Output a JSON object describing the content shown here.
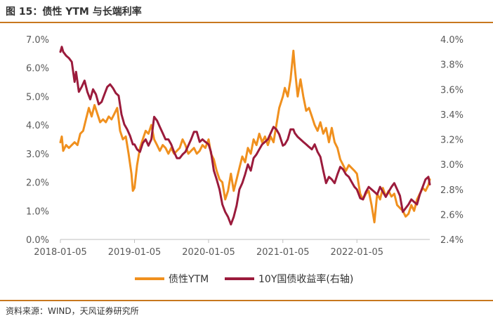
{
  "figure_title": "图 15：债性 YTM 与长端利率",
  "source_note": "资料来源：WIND，天风证券研究所",
  "colors": {
    "accent": "#c8781e",
    "series_ytm": "#f0901e",
    "series_10y": "#9b1b3c"
  },
  "chart_data": {
    "type": "line",
    "title": "",
    "x_ticks": [
      "2018-01-05",
      "2019-01-05",
      "2020-01-05",
      "2021-01-05",
      "2022-01-05"
    ],
    "x_range": [
      "2018-01-05",
      "2022-12-30"
    ],
    "y_left": {
      "min": 0,
      "max": 7,
      "ticks": [
        "0.0%",
        "1.0%",
        "2.0%",
        "3.0%",
        "4.0%",
        "5.0%",
        "6.0%",
        "7.0%"
      ]
    },
    "y_right": {
      "min": 2.4,
      "max": 4.0,
      "ticks": [
        "2.4%",
        "2.6%",
        "2.8%",
        "3.0%",
        "3.2%",
        "3.4%",
        "3.6%",
        "3.8%",
        "4.0%"
      ]
    },
    "grid": false,
    "legend_position": "bottom",
    "series": [
      {
        "name": "债性YTM",
        "axis": "left",
        "color": "#f0901e",
        "points": [
          [
            "2018-01-05",
            3.4
          ],
          [
            "2018-01-12",
            3.6
          ],
          [
            "2018-01-19",
            3.1
          ],
          [
            "2018-02-02",
            3.3
          ],
          [
            "2018-02-16",
            3.2
          ],
          [
            "2018-03-02",
            3.3
          ],
          [
            "2018-03-16",
            3.4
          ],
          [
            "2018-03-30",
            3.3
          ],
          [
            "2018-04-13",
            3.7
          ],
          [
            "2018-04-27",
            3.8
          ],
          [
            "2018-05-11",
            4.2
          ],
          [
            "2018-05-25",
            4.6
          ],
          [
            "2018-06-08",
            4.3
          ],
          [
            "2018-06-22",
            4.7
          ],
          [
            "2018-07-06",
            4.4
          ],
          [
            "2018-07-20",
            4.1
          ],
          [
            "2018-08-03",
            4.2
          ],
          [
            "2018-08-17",
            4.1
          ],
          [
            "2018-08-31",
            4.3
          ],
          [
            "2018-09-14",
            4.2
          ],
          [
            "2018-09-28",
            4.4
          ],
          [
            "2018-10-12",
            4.6
          ],
          [
            "2018-10-26",
            3.8
          ],
          [
            "2018-11-09",
            3.5
          ],
          [
            "2018-11-23",
            3.6
          ],
          [
            "2018-12-07",
            3.0
          ],
          [
            "2018-12-21",
            2.3
          ],
          [
            "2018-12-28",
            1.7
          ],
          [
            "2019-01-05",
            1.8
          ],
          [
            "2019-01-18",
            2.6
          ],
          [
            "2019-02-01",
            3.2
          ],
          [
            "2019-02-15",
            3.5
          ],
          [
            "2019-03-01",
            3.8
          ],
          [
            "2019-03-15",
            3.7
          ],
          [
            "2019-03-29",
            4.0
          ],
          [
            "2019-04-12",
            3.5
          ],
          [
            "2019-04-26",
            3.3
          ],
          [
            "2019-05-10",
            3.1
          ],
          [
            "2019-05-24",
            3.3
          ],
          [
            "2019-06-07",
            3.2
          ],
          [
            "2019-06-21",
            3.0
          ],
          [
            "2019-07-05",
            3.2
          ],
          [
            "2019-07-19",
            3.0
          ],
          [
            "2019-08-02",
            3.1
          ],
          [
            "2019-08-16",
            3.2
          ],
          [
            "2019-08-30",
            3.5
          ],
          [
            "2019-09-13",
            3.3
          ],
          [
            "2019-09-27",
            3.0
          ],
          [
            "2019-10-11",
            3.1
          ],
          [
            "2019-10-25",
            3.2
          ],
          [
            "2019-11-08",
            3.0
          ],
          [
            "2019-11-22",
            3.1
          ],
          [
            "2019-12-06",
            3.3
          ],
          [
            "2019-12-20",
            3.2
          ],
          [
            "2020-01-05",
            3.5
          ],
          [
            "2020-01-17",
            3.0
          ],
          [
            "2020-01-31",
            2.8
          ],
          [
            "2020-02-14",
            2.4
          ],
          [
            "2020-02-28",
            2.1
          ],
          [
            "2020-03-13",
            2.0
          ],
          [
            "2020-03-27",
            1.4
          ],
          [
            "2020-04-10",
            1.7
          ],
          [
            "2020-04-24",
            2.3
          ],
          [
            "2020-05-08",
            1.7
          ],
          [
            "2020-05-22",
            2.1
          ],
          [
            "2020-06-05",
            2.5
          ],
          [
            "2020-06-19",
            2.9
          ],
          [
            "2020-07-03",
            2.7
          ],
          [
            "2020-07-17",
            3.2
          ],
          [
            "2020-07-31",
            3.0
          ],
          [
            "2020-08-14",
            3.5
          ],
          [
            "2020-08-28",
            3.3
          ],
          [
            "2020-09-11",
            3.7
          ],
          [
            "2020-09-25",
            3.4
          ],
          [
            "2020-10-09",
            3.6
          ],
          [
            "2020-10-23",
            3.3
          ],
          [
            "2020-11-06",
            3.6
          ],
          [
            "2020-11-20",
            3.4
          ],
          [
            "2020-12-04",
            4.0
          ],
          [
            "2020-12-18",
            4.6
          ],
          [
            "2021-01-05",
            5.0
          ],
          [
            "2021-01-15",
            5.3
          ],
          [
            "2021-01-29",
            5.0
          ],
          [
            "2021-02-12",
            5.6
          ],
          [
            "2021-02-26",
            6.6
          ],
          [
            "2021-03-05",
            6.0
          ],
          [
            "2021-03-19",
            5.0
          ],
          [
            "2021-04-02",
            5.6
          ],
          [
            "2021-04-16",
            5.0
          ],
          [
            "2021-04-30",
            4.5
          ],
          [
            "2021-05-14",
            4.6
          ],
          [
            "2021-05-28",
            4.3
          ],
          [
            "2021-06-11",
            4.0
          ],
          [
            "2021-06-25",
            3.8
          ],
          [
            "2021-07-09",
            4.1
          ],
          [
            "2021-07-23",
            3.7
          ],
          [
            "2021-08-06",
            3.9
          ],
          [
            "2021-08-20",
            3.4
          ],
          [
            "2021-09-03",
            3.9
          ],
          [
            "2021-09-17",
            3.4
          ],
          [
            "2021-10-01",
            3.2
          ],
          [
            "2021-10-15",
            2.8
          ],
          [
            "2021-10-29",
            2.6
          ],
          [
            "2021-11-12",
            2.4
          ],
          [
            "2021-11-26",
            2.6
          ],
          [
            "2021-12-10",
            2.5
          ],
          [
            "2021-12-24",
            2.4
          ],
          [
            "2022-01-05",
            2.3
          ],
          [
            "2022-01-21",
            1.6
          ],
          [
            "2022-02-04",
            1.4
          ],
          [
            "2022-02-18",
            1.6
          ],
          [
            "2022-03-04",
            1.7
          ],
          [
            "2022-03-18",
            1.2
          ],
          [
            "2022-04-01",
            0.6
          ],
          [
            "2022-04-15",
            1.6
          ],
          [
            "2022-04-29",
            1.4
          ],
          [
            "2022-05-13",
            1.8
          ],
          [
            "2022-05-27",
            1.5
          ],
          [
            "2022-06-10",
            1.7
          ],
          [
            "2022-06-24",
            1.5
          ],
          [
            "2022-07-08",
            1.6
          ],
          [
            "2022-07-22",
            1.2
          ],
          [
            "2022-08-05",
            1.1
          ],
          [
            "2022-08-19",
            1.0
          ],
          [
            "2022-09-02",
            0.8
          ],
          [
            "2022-09-16",
            0.9
          ],
          [
            "2022-09-30",
            1.2
          ],
          [
            "2022-10-14",
            1.0
          ],
          [
            "2022-10-28",
            1.4
          ],
          [
            "2022-11-11",
            1.6
          ],
          [
            "2022-11-25",
            1.8
          ],
          [
            "2022-12-09",
            1.7
          ],
          [
            "2022-12-23",
            1.9
          ],
          [
            "2022-12-30",
            2.1
          ]
        ]
      },
      {
        "name": "10Y国债收益率(右轴)",
        "axis": "right",
        "color": "#9b1b3c",
        "points": [
          [
            "2018-01-05",
            3.9
          ],
          [
            "2018-01-12",
            3.94
          ],
          [
            "2018-01-19",
            3.9
          ],
          [
            "2018-02-02",
            3.87
          ],
          [
            "2018-02-16",
            3.85
          ],
          [
            "2018-03-02",
            3.82
          ],
          [
            "2018-03-16",
            3.66
          ],
          [
            "2018-03-23",
            3.74
          ],
          [
            "2018-04-06",
            3.58
          ],
          [
            "2018-04-20",
            3.62
          ],
          [
            "2018-05-04",
            3.67
          ],
          [
            "2018-05-18",
            3.58
          ],
          [
            "2018-06-01",
            3.52
          ],
          [
            "2018-06-15",
            3.6
          ],
          [
            "2018-06-29",
            3.56
          ],
          [
            "2018-07-13",
            3.48
          ],
          [
            "2018-07-27",
            3.5
          ],
          [
            "2018-08-10",
            3.56
          ],
          [
            "2018-08-24",
            3.62
          ],
          [
            "2018-09-07",
            3.64
          ],
          [
            "2018-09-21",
            3.61
          ],
          [
            "2018-10-05",
            3.57
          ],
          [
            "2018-10-19",
            3.55
          ],
          [
            "2018-11-02",
            3.4
          ],
          [
            "2018-11-16",
            3.32
          ],
          [
            "2018-11-30",
            3.28
          ],
          [
            "2018-12-14",
            3.23
          ],
          [
            "2018-12-28",
            3.16
          ],
          [
            "2019-01-05",
            3.16
          ],
          [
            "2019-01-18",
            3.12
          ],
          [
            "2019-02-01",
            3.1
          ],
          [
            "2019-02-15",
            3.17
          ],
          [
            "2019-03-01",
            3.2
          ],
          [
            "2019-03-15",
            3.15
          ],
          [
            "2019-03-29",
            3.2
          ],
          [
            "2019-04-12",
            3.38
          ],
          [
            "2019-04-26",
            3.35
          ],
          [
            "2019-05-10",
            3.3
          ],
          [
            "2019-05-24",
            3.25
          ],
          [
            "2019-06-07",
            3.2
          ],
          [
            "2019-06-21",
            3.2
          ],
          [
            "2019-07-05",
            3.16
          ],
          [
            "2019-07-19",
            3.1
          ],
          [
            "2019-08-02",
            3.05
          ],
          [
            "2019-08-16",
            3.05
          ],
          [
            "2019-08-30",
            3.08
          ],
          [
            "2019-09-13",
            3.1
          ],
          [
            "2019-09-27",
            3.15
          ],
          [
            "2019-10-11",
            3.2
          ],
          [
            "2019-10-25",
            3.26
          ],
          [
            "2019-11-08",
            3.26
          ],
          [
            "2019-11-22",
            3.18
          ],
          [
            "2019-12-06",
            3.2
          ],
          [
            "2019-12-20",
            3.18
          ],
          [
            "2020-01-05",
            3.16
          ],
          [
            "2020-01-17",
            3.1
          ],
          [
            "2020-01-31",
            2.95
          ],
          [
            "2020-02-14",
            2.88
          ],
          [
            "2020-02-28",
            2.8
          ],
          [
            "2020-03-13",
            2.68
          ],
          [
            "2020-03-27",
            2.62
          ],
          [
            "2020-04-10",
            2.58
          ],
          [
            "2020-04-24",
            2.52
          ],
          [
            "2020-05-08",
            2.58
          ],
          [
            "2020-05-22",
            2.67
          ],
          [
            "2020-06-05",
            2.8
          ],
          [
            "2020-06-19",
            2.85
          ],
          [
            "2020-07-03",
            2.92
          ],
          [
            "2020-07-17",
            3.0
          ],
          [
            "2020-07-31",
            2.95
          ],
          [
            "2020-08-14",
            3.05
          ],
          [
            "2020-08-28",
            3.08
          ],
          [
            "2020-09-11",
            3.12
          ],
          [
            "2020-09-25",
            3.16
          ],
          [
            "2020-10-09",
            3.18
          ],
          [
            "2020-10-23",
            3.2
          ],
          [
            "2020-11-06",
            3.25
          ],
          [
            "2020-11-20",
            3.3
          ],
          [
            "2020-12-04",
            3.28
          ],
          [
            "2020-12-18",
            3.24
          ],
          [
            "2021-01-05",
            3.15
          ],
          [
            "2021-01-15",
            3.16
          ],
          [
            "2021-01-29",
            3.2
          ],
          [
            "2021-02-12",
            3.28
          ],
          [
            "2021-02-26",
            3.28
          ],
          [
            "2021-03-05",
            3.25
          ],
          [
            "2021-03-19",
            3.22
          ],
          [
            "2021-04-02",
            3.2
          ],
          [
            "2021-04-16",
            3.18
          ],
          [
            "2021-04-30",
            3.16
          ],
          [
            "2021-05-14",
            3.14
          ],
          [
            "2021-05-28",
            3.12
          ],
          [
            "2021-06-11",
            3.16
          ],
          [
            "2021-06-25",
            3.1
          ],
          [
            "2021-07-09",
            3.06
          ],
          [
            "2021-07-23",
            2.95
          ],
          [
            "2021-08-06",
            2.85
          ],
          [
            "2021-08-20",
            2.9
          ],
          [
            "2021-09-03",
            2.88
          ],
          [
            "2021-09-17",
            2.85
          ],
          [
            "2021-10-01",
            2.92
          ],
          [
            "2021-10-15",
            2.98
          ],
          [
            "2021-10-29",
            2.96
          ],
          [
            "2021-11-12",
            2.92
          ],
          [
            "2021-11-26",
            2.9
          ],
          [
            "2021-12-10",
            2.86
          ],
          [
            "2021-12-24",
            2.82
          ],
          [
            "2022-01-05",
            2.8
          ],
          [
            "2022-01-21",
            2.73
          ],
          [
            "2022-02-04",
            2.72
          ],
          [
            "2022-02-18",
            2.78
          ],
          [
            "2022-03-04",
            2.82
          ],
          [
            "2022-03-18",
            2.8
          ],
          [
            "2022-04-01",
            2.78
          ],
          [
            "2022-04-15",
            2.76
          ],
          [
            "2022-04-29",
            2.82
          ],
          [
            "2022-05-13",
            2.78
          ],
          [
            "2022-05-27",
            2.74
          ],
          [
            "2022-06-10",
            2.78
          ],
          [
            "2022-06-24",
            2.82
          ],
          [
            "2022-07-08",
            2.85
          ],
          [
            "2022-07-22",
            2.8
          ],
          [
            "2022-08-05",
            2.75
          ],
          [
            "2022-08-19",
            2.62
          ],
          [
            "2022-09-02",
            2.65
          ],
          [
            "2022-09-16",
            2.68
          ],
          [
            "2022-09-30",
            2.72
          ],
          [
            "2022-10-14",
            2.7
          ],
          [
            "2022-10-28",
            2.68
          ],
          [
            "2022-11-11",
            2.76
          ],
          [
            "2022-11-25",
            2.82
          ],
          [
            "2022-12-09",
            2.88
          ],
          [
            "2022-12-23",
            2.9
          ],
          [
            "2022-12-30",
            2.84
          ]
        ]
      }
    ]
  }
}
